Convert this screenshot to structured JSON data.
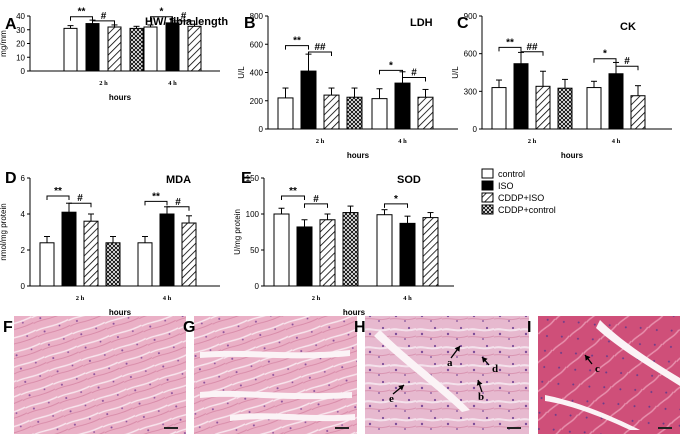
{
  "figure": {
    "legend": [
      "control",
      "ISO",
      "CDDP+ISO",
      "CDDP+control"
    ],
    "colors": {
      "control": "#ffffff",
      "ISO": "#000000",
      "stroke": "#000000",
      "tissue_light": "#eeb3ca",
      "tissue_dark": "#c8416c"
    },
    "micrographs": [
      {
        "label": "F",
        "annotations": []
      },
      {
        "label": "G",
        "annotations": []
      },
      {
        "label": "H",
        "annotations": [
          "a",
          "d",
          "e",
          "b"
        ]
      },
      {
        "label": "I",
        "annotations": [
          "c"
        ]
      }
    ]
  },
  "chart_data": [
    {
      "panel": "A",
      "type": "bar",
      "title": "HW/ tibia length",
      "ylabel": "mg/mm",
      "xlabel": "hours",
      "ylim": [
        0,
        40
      ],
      "yticks": [
        0,
        10,
        20,
        30,
        40
      ],
      "categories": [
        "2 h",
        "4 h"
      ],
      "series": [
        {
          "name": "control",
          "values": [
            31,
            32
          ],
          "errors": [
            2,
            1.5
          ]
        },
        {
          "name": "ISO",
          "values": [
            34.5,
            35
          ],
          "errors": [
            2.5,
            3
          ]
        },
        {
          "name": "CDDP+ISO",
          "values": [
            32,
            32.5
          ],
          "errors": [
            1.5,
            1.5
          ]
        },
        {
          "name": "CDDP+control",
          "values": [
            31,
            null
          ],
          "errors": [
            1.5,
            null
          ]
        }
      ],
      "annotations": [
        {
          "text": "**",
          "group": 0,
          "from": 0,
          "to": 1,
          "y": 39.5
        },
        {
          "text": "#",
          "group": 0,
          "from": 1,
          "to": 2,
          "y": 36.5
        },
        {
          "text": "*",
          "group": 1,
          "from": 0,
          "to": 1,
          "y": 39.5
        },
        {
          "text": "#",
          "group": 1,
          "from": 1,
          "to": 2,
          "y": 36.5
        }
      ]
    },
    {
      "panel": "B",
      "type": "bar",
      "title": "LDH",
      "ylabel": "U/L",
      "xlabel": "hours",
      "ylim": [
        0,
        800
      ],
      "yticks": [
        0,
        200,
        400,
        600,
        800
      ],
      "categories": [
        "2 h",
        "4 h"
      ],
      "series": [
        {
          "name": "control",
          "values": [
            220,
            215
          ],
          "errors": [
            70,
            70
          ]
        },
        {
          "name": "ISO",
          "values": [
            410,
            325
          ],
          "errors": [
            120,
            80
          ]
        },
        {
          "name": "CDDP+ISO",
          "values": [
            240,
            225
          ],
          "errors": [
            50,
            55
          ]
        },
        {
          "name": "CDDP+control",
          "values": [
            225,
            null
          ],
          "errors": [
            65,
            null
          ]
        }
      ],
      "annotations": [
        {
          "text": "**",
          "group": 0,
          "from": 0,
          "to": 1,
          "y": 590
        },
        {
          "text": "##",
          "group": 0,
          "from": 1,
          "to": 2,
          "y": 545
        },
        {
          "text": "*",
          "group": 1,
          "from": 0,
          "to": 1,
          "y": 415
        },
        {
          "text": "#",
          "group": 1,
          "from": 1,
          "to": 2,
          "y": 365
        }
      ]
    },
    {
      "panel": "C",
      "type": "bar",
      "title": "CK",
      "ylabel": "U/L",
      "xlabel": "hours",
      "ylim": [
        0,
        900
      ],
      "yticks": [
        0,
        300,
        600,
        900
      ],
      "categories": [
        "2 h",
        "4 h"
      ],
      "series": [
        {
          "name": "control",
          "values": [
            330,
            330
          ],
          "errors": [
            60,
            50
          ]
        },
        {
          "name": "ISO",
          "values": [
            520,
            440
          ],
          "errors": [
            90,
            90
          ]
        },
        {
          "name": "CDDP+ISO",
          "values": [
            340,
            265
          ],
          "errors": [
            120,
            80
          ]
        },
        {
          "name": "CDDP+control",
          "values": [
            325,
            null
          ],
          "errors": [
            70,
            null
          ]
        }
      ],
      "annotations": [
        {
          "text": "**",
          "group": 0,
          "from": 0,
          "to": 1,
          "y": 650
        },
        {
          "text": "##",
          "group": 0,
          "from": 1,
          "to": 2,
          "y": 615
        },
        {
          "text": "*",
          "group": 1,
          "from": 0,
          "to": 1,
          "y": 560
        },
        {
          "text": "#",
          "group": 1,
          "from": 1,
          "to": 2,
          "y": 500
        }
      ]
    },
    {
      "panel": "D",
      "type": "bar",
      "title": "MDA",
      "ylabel": "nmol/mg protein",
      "xlabel": "hours",
      "ylim": [
        0,
        6
      ],
      "yticks": [
        0,
        2,
        4,
        6
      ],
      "categories": [
        "2 h",
        "4 h"
      ],
      "series": [
        {
          "name": "control",
          "values": [
            2.4,
            2.4
          ],
          "errors": [
            0.35,
            0.35
          ]
        },
        {
          "name": "ISO",
          "values": [
            4.1,
            4.0
          ],
          "errors": [
            0.5,
            0.4
          ]
        },
        {
          "name": "CDDP+ISO",
          "values": [
            3.6,
            3.5
          ],
          "errors": [
            0.4,
            0.4
          ]
        },
        {
          "name": "CDDP+control",
          "values": [
            2.4,
            null
          ],
          "errors": [
            0.35,
            null
          ]
        }
      ],
      "annotations": [
        {
          "text": "**",
          "group": 0,
          "from": 0,
          "to": 1,
          "y": 5.0
        },
        {
          "text": "#",
          "group": 0,
          "from": 1,
          "to": 2,
          "y": 4.6
        },
        {
          "text": "**",
          "group": 1,
          "from": 0,
          "to": 1,
          "y": 4.7
        },
        {
          "text": "#",
          "group": 1,
          "from": 1,
          "to": 2,
          "y": 4.4
        }
      ]
    },
    {
      "panel": "E",
      "type": "bar",
      "title": "SOD",
      "ylabel": "U/mg protein",
      "xlabel": "hours",
      "ylim": [
        0,
        150
      ],
      "yticks": [
        0,
        50,
        100,
        150
      ],
      "categories": [
        "2 h",
        "4 h"
      ],
      "series": [
        {
          "name": "control",
          "values": [
            100,
            99
          ],
          "errors": [
            8,
            7
          ]
        },
        {
          "name": "ISO",
          "values": [
            82,
            87
          ],
          "errors": [
            10,
            10
          ]
        },
        {
          "name": "CDDP+ISO",
          "values": [
            92,
            95
          ],
          "errors": [
            8,
            7
          ]
        },
        {
          "name": "CDDP+control",
          "values": [
            102,
            null
          ],
          "errors": [
            9,
            null
          ]
        }
      ],
      "annotations": [
        {
          "text": "**",
          "group": 0,
          "from": 0,
          "to": 1,
          "y": 125
        },
        {
          "text": "#",
          "group": 0,
          "from": 1,
          "to": 2,
          "y": 114
        },
        {
          "text": "*",
          "group": 1,
          "from": 0,
          "to": 1,
          "y": 114
        }
      ]
    }
  ]
}
